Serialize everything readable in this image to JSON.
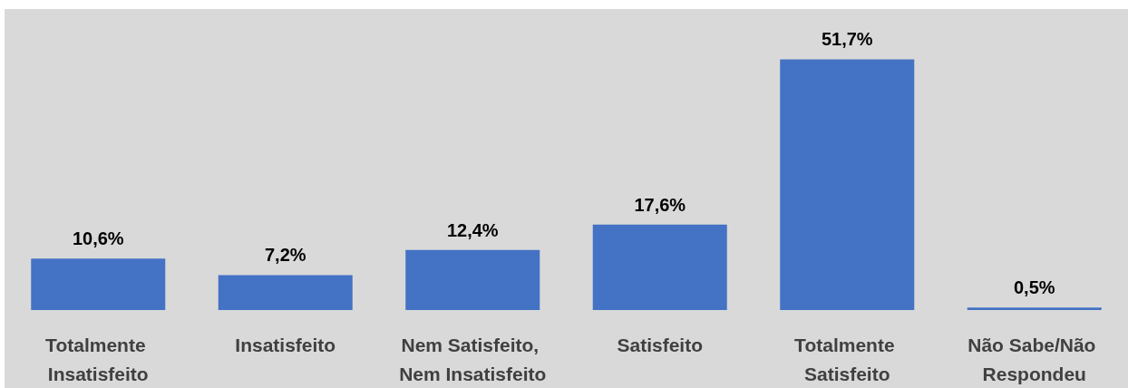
{
  "chart_data": {
    "type": "bar",
    "categories": [
      "Totalmente Insatisfeito",
      "Insatisfeito",
      "Nem Satisfeito, Nem Insatisfeito",
      "Satisfeito",
      "Totalmente Satisfeito",
      "Não Sabe/Não Respondeu"
    ],
    "values": [
      10.6,
      7.2,
      12.4,
      17.6,
      51.7,
      0.5
    ],
    "value_labels": [
      "10,6%",
      "7,2%",
      "12,4%",
      "17,6%",
      "51,7%",
      "0,5%"
    ],
    "color": "#4472c4"
  }
}
